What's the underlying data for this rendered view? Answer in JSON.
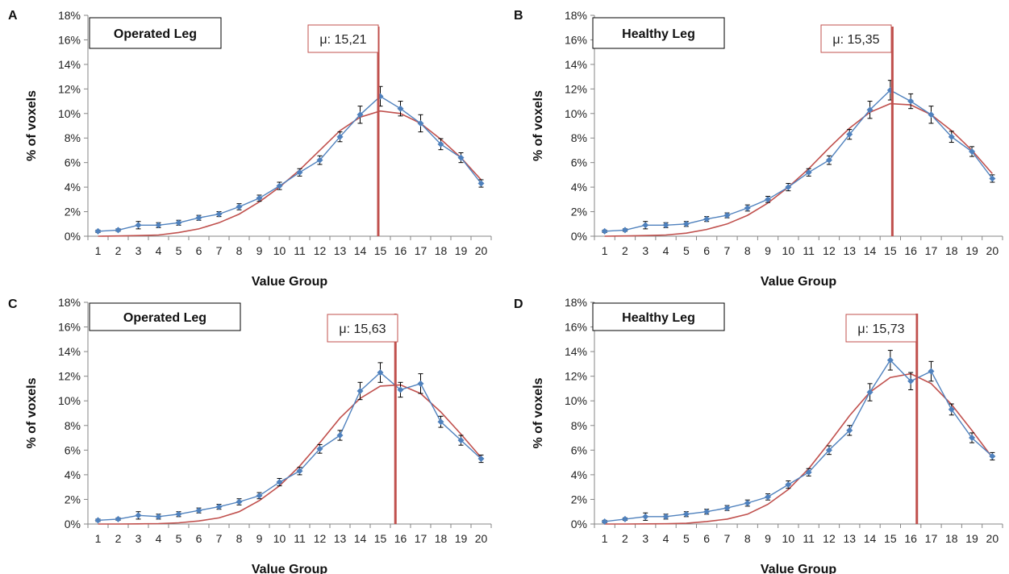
{
  "figure": {
    "colors": {
      "observed": "#4F81BD",
      "fitted": "#C0504D",
      "mean_line": "#C0504D",
      "error_bars": "#000000",
      "axis": "#868686"
    }
  },
  "chart_data": [
    {
      "panel": "A",
      "type": "line",
      "box_label": "Operated Leg",
      "mean_label": "μ: 15,21",
      "mean_x": 14.9,
      "xlabel": "Value Group",
      "ylabel": "% of voxels",
      "x": [
        1,
        2,
        3,
        4,
        5,
        6,
        7,
        8,
        9,
        10,
        11,
        12,
        13,
        14,
        15,
        16,
        17,
        18,
        19,
        20
      ],
      "y_ticks": [
        "0%",
        "2%",
        "4%",
        "6%",
        "8%",
        "10%",
        "12%",
        "14%",
        "16%",
        "18%"
      ],
      "ylim": [
        0,
        18
      ],
      "series": [
        {
          "kind": "observed",
          "values": [
            0.4,
            0.5,
            0.9,
            0.9,
            1.1,
            1.5,
            1.8,
            2.4,
            3.1,
            4.1,
            5.2,
            6.2,
            8.1,
            9.9,
            11.4,
            10.4,
            9.2,
            7.5,
            6.4,
            4.3
          ],
          "errors": [
            0.1,
            0.1,
            0.3,
            0.2,
            0.2,
            0.2,
            0.2,
            0.25,
            0.25,
            0.3,
            0.3,
            0.35,
            0.4,
            0.7,
            0.8,
            0.6,
            0.7,
            0.45,
            0.4,
            0.3
          ]
        },
        {
          "kind": "fitted",
          "values": [
            0.0,
            0.02,
            0.05,
            0.1,
            0.3,
            0.6,
            1.1,
            1.8,
            2.8,
            4.0,
            5.4,
            7.0,
            8.6,
            9.7,
            10.2,
            10.0,
            9.2,
            7.9,
            6.4,
            4.6
          ]
        }
      ]
    },
    {
      "panel": "B",
      "type": "line",
      "box_label": "Healthy Leg",
      "mean_label": "μ: 15,35",
      "mean_x": 15.1,
      "xlabel": "Value Group",
      "ylabel": "% of voxels",
      "x": [
        1,
        2,
        3,
        4,
        5,
        6,
        7,
        8,
        9,
        10,
        11,
        12,
        13,
        14,
        15,
        16,
        17,
        18,
        19,
        20
      ],
      "y_ticks": [
        "0%",
        "2%",
        "4%",
        "6%",
        "8%",
        "10%",
        "12%",
        "14%",
        "16%",
        "18%"
      ],
      "ylim": [
        0,
        18
      ],
      "series": [
        {
          "kind": "observed",
          "values": [
            0.4,
            0.5,
            0.9,
            0.9,
            1.0,
            1.4,
            1.7,
            2.3,
            3.0,
            4.0,
            5.2,
            6.2,
            8.3,
            10.3,
            11.9,
            11.0,
            9.9,
            8.1,
            6.9,
            4.7
          ],
          "errors": [
            0.1,
            0.1,
            0.3,
            0.2,
            0.2,
            0.2,
            0.2,
            0.25,
            0.25,
            0.3,
            0.3,
            0.35,
            0.4,
            0.7,
            0.8,
            0.6,
            0.7,
            0.45,
            0.4,
            0.3
          ]
        },
        {
          "kind": "fitted",
          "values": [
            0.0,
            0.02,
            0.05,
            0.1,
            0.25,
            0.55,
            1.0,
            1.7,
            2.7,
            4.0,
            5.5,
            7.2,
            8.8,
            10.1,
            10.8,
            10.7,
            9.9,
            8.6,
            7.0,
            5.1
          ]
        }
      ]
    },
    {
      "panel": "C",
      "type": "line",
      "box_label": "Operated Leg",
      "mean_label": "μ: 15,63",
      "mean_x": 15.75,
      "xlabel": "Value Group",
      "ylabel": "% of voxels",
      "x": [
        1,
        2,
        3,
        4,
        5,
        6,
        7,
        8,
        9,
        10,
        11,
        12,
        13,
        14,
        15,
        16,
        17,
        18,
        19,
        20
      ],
      "y_ticks": [
        "0%",
        "2%",
        "4%",
        "6%",
        "8%",
        "10%",
        "12%",
        "14%",
        "16%",
        "18%"
      ],
      "ylim": [
        0,
        18
      ],
      "series": [
        {
          "kind": "observed",
          "values": [
            0.3,
            0.4,
            0.7,
            0.6,
            0.8,
            1.1,
            1.4,
            1.8,
            2.3,
            3.4,
            4.3,
            6.1,
            7.2,
            10.8,
            12.3,
            10.9,
            11.4,
            8.3,
            6.8,
            5.3
          ],
          "errors": [
            0.1,
            0.1,
            0.3,
            0.2,
            0.2,
            0.2,
            0.2,
            0.25,
            0.25,
            0.3,
            0.3,
            0.35,
            0.4,
            0.7,
            0.8,
            0.6,
            0.8,
            0.45,
            0.4,
            0.3
          ]
        },
        {
          "kind": "fitted",
          "values": [
            0.0,
            0.0,
            0.01,
            0.03,
            0.1,
            0.25,
            0.5,
            1.0,
            1.9,
            3.1,
            4.7,
            6.6,
            8.6,
            10.2,
            11.2,
            11.3,
            10.6,
            9.1,
            7.3,
            5.4
          ]
        }
      ]
    },
    {
      "panel": "D",
      "type": "line",
      "box_label": "Healthy Leg",
      "mean_label": "μ: 15,73",
      "mean_x": 16.3,
      "xlabel": "Value Group",
      "ylabel": "% of voxels",
      "x": [
        1,
        2,
        3,
        4,
        5,
        6,
        7,
        8,
        9,
        10,
        11,
        12,
        13,
        14,
        15,
        16,
        17,
        18,
        19,
        20
      ],
      "y_ticks": [
        "0%",
        "2%",
        "4%",
        "6%",
        "8%",
        "10%",
        "12%",
        "14%",
        "16%",
        "18%"
      ],
      "ylim": [
        0,
        18
      ],
      "series": [
        {
          "kind": "observed",
          "values": [
            0.2,
            0.4,
            0.6,
            0.6,
            0.8,
            1.0,
            1.3,
            1.7,
            2.2,
            3.2,
            4.2,
            6.0,
            7.6,
            10.7,
            13.3,
            11.6,
            12.4,
            9.3,
            7.0,
            5.5
          ],
          "errors": [
            0.1,
            0.1,
            0.3,
            0.2,
            0.2,
            0.2,
            0.2,
            0.25,
            0.25,
            0.3,
            0.3,
            0.35,
            0.4,
            0.7,
            0.8,
            0.7,
            0.8,
            0.45,
            0.4,
            0.3
          ]
        },
        {
          "kind": "fitted",
          "values": [
            0.0,
            0.0,
            0.01,
            0.02,
            0.06,
            0.2,
            0.4,
            0.8,
            1.6,
            2.8,
            4.5,
            6.6,
            8.8,
            10.7,
            11.9,
            12.2,
            11.4,
            9.7,
            7.6,
            5.4
          ]
        }
      ]
    }
  ]
}
